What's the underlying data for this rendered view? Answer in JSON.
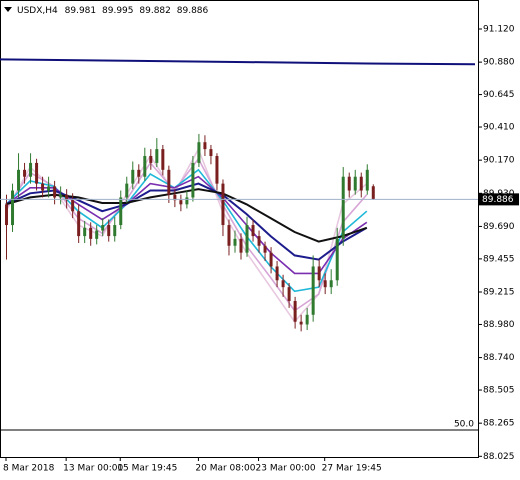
{
  "chart_data": {
    "type": "candlestick",
    "title": "USDX,H4",
    "bull_color": "#2f7a2f",
    "bear_color": "#7a1f1f",
    "open": [
      89.85,
      89.7,
      89.95,
      90.1,
      90.05,
      90.15,
      90.0,
      89.95,
      89.98,
      89.9,
      89.92,
      89.88,
      89.8,
      89.62,
      89.68,
      89.6,
      89.66,
      89.7,
      89.62,
      89.7,
      89.9,
      90.0,
      90.1,
      90.05,
      90.2,
      90.15,
      90.25,
      90.1,
      89.92,
      89.88,
      89.85,
      89.9,
      90.15,
      90.3,
      90.25,
      90.2,
      90.0,
      89.7,
      89.55,
      89.6,
      89.5,
      89.7,
      89.62,
      89.55,
      89.5,
      89.4,
      89.3,
      89.25,
      89.15,
      89.0,
      88.98,
      89.05,
      89.4,
      89.3,
      89.25,
      89.3,
      89.6,
      90.05,
      89.95,
      90.05,
      89.95,
      89.981
    ],
    "high": [
      89.92,
      90.0,
      90.22,
      90.15,
      90.22,
      90.18,
      90.05,
      90.05,
      90.02,
      89.98,
      89.96,
      89.93,
      89.85,
      89.73,
      89.72,
      89.7,
      89.75,
      89.74,
      89.76,
      89.95,
      90.05,
      90.16,
      90.14,
      90.26,
      90.25,
      90.33,
      90.28,
      90.13,
      89.96,
      89.92,
      89.95,
      90.2,
      90.36,
      90.35,
      90.28,
      90.22,
      90.03,
      89.74,
      89.66,
      89.64,
      89.76,
      89.74,
      89.66,
      89.58,
      89.54,
      89.44,
      89.34,
      89.28,
      89.18,
      89.05,
      89.1,
      89.48,
      89.45,
      89.35,
      89.38,
      89.68,
      90.12,
      90.08,
      90.1,
      90.08,
      90.14,
      89.995
    ],
    "low": [
      89.45,
      89.65,
      89.9,
      90.0,
      90.0,
      89.95,
      89.9,
      89.9,
      89.85,
      89.85,
      89.82,
      89.75,
      89.57,
      89.57,
      89.55,
      89.56,
      89.62,
      89.58,
      89.58,
      89.67,
      89.86,
      89.96,
      90.0,
      90.02,
      90.1,
      90.12,
      90.06,
      89.86,
      89.83,
      89.8,
      89.82,
      89.87,
      90.12,
      90.2,
      90.14,
      89.95,
      89.62,
      89.48,
      89.5,
      89.45,
      89.47,
      89.58,
      89.5,
      89.44,
      89.35,
      89.25,
      89.18,
      89.1,
      88.95,
      88.93,
      88.94,
      89.0,
      89.25,
      89.2,
      89.2,
      89.26,
      89.55,
      89.9,
      89.92,
      89.9,
      89.92,
      89.882
    ],
    "close": [
      89.7,
      89.95,
      90.1,
      90.05,
      90.15,
      90.0,
      89.95,
      89.98,
      89.9,
      89.92,
      89.88,
      89.8,
      89.62,
      89.68,
      89.6,
      89.66,
      89.7,
      89.62,
      89.7,
      89.9,
      90.0,
      90.1,
      90.05,
      90.2,
      90.15,
      90.25,
      90.1,
      89.92,
      89.88,
      89.85,
      89.9,
      90.15,
      90.3,
      90.25,
      90.2,
      90.0,
      89.7,
      89.55,
      89.6,
      89.5,
      89.7,
      89.62,
      89.55,
      89.5,
      89.4,
      89.3,
      89.25,
      89.15,
      89.0,
      88.98,
      89.05,
      89.4,
      89.3,
      89.25,
      89.3,
      89.6,
      90.05,
      89.95,
      90.05,
      89.95,
      90.1,
      89.886
    ],
    "moving_averages": [
      {
        "color": "#e8c8e0",
        "x": [
          0,
          4,
          8,
          12,
          16,
          20,
          24,
          28,
          32,
          36,
          40,
          44,
          48,
          52,
          56,
          60
        ],
        "values": [
          89.8,
          90.12,
          89.96,
          89.7,
          89.62,
          89.92,
          90.2,
          89.93,
          90.25,
          89.8,
          89.5,
          89.25,
          89.0,
          89.2,
          89.85,
          90.0
        ]
      },
      {
        "color": "#d7a6d7",
        "x": [
          0,
          4,
          8,
          12,
          16,
          20,
          24,
          28,
          32,
          36,
          40,
          44,
          48,
          52,
          56,
          60
        ],
        "values": [
          89.82,
          90.08,
          89.98,
          89.75,
          89.64,
          89.88,
          90.15,
          89.95,
          90.18,
          89.85,
          89.55,
          89.32,
          89.08,
          89.2,
          89.72,
          89.92
        ]
      },
      {
        "color": "#1fb8d8",
        "x": [
          0,
          4,
          8,
          12,
          16,
          20,
          24,
          28,
          32,
          36,
          40,
          44,
          48,
          52,
          56,
          60
        ],
        "values": [
          89.85,
          90.02,
          89.98,
          89.8,
          89.68,
          89.85,
          90.07,
          89.97,
          90.1,
          89.88,
          89.62,
          89.4,
          89.22,
          89.25,
          89.65,
          89.8
        ]
      },
      {
        "color": "#7a2fb0",
        "x": [
          0,
          4,
          8,
          12,
          16,
          20,
          24,
          28,
          32,
          36,
          40,
          44,
          48,
          52,
          56,
          60
        ],
        "values": [
          89.85,
          89.97,
          89.97,
          89.85,
          89.74,
          89.85,
          90.0,
          89.97,
          90.05,
          89.9,
          89.7,
          89.5,
          89.35,
          89.35,
          89.6,
          89.72
        ]
      },
      {
        "color": "#1c1c8c",
        "x": [
          0,
          4,
          8,
          12,
          16,
          20,
          24,
          28,
          32,
          36,
          40,
          44,
          48,
          52,
          56,
          60
        ],
        "values": [
          89.85,
          89.93,
          89.95,
          89.88,
          89.8,
          89.85,
          89.95,
          89.95,
          90.0,
          89.92,
          89.78,
          89.62,
          89.48,
          89.45,
          89.58,
          89.68
        ]
      },
      {
        "color": "#111111",
        "x": [
          0,
          4,
          8,
          12,
          16,
          20,
          24,
          28,
          32,
          36,
          40,
          44,
          48,
          52,
          56,
          60
        ],
        "values": [
          89.85,
          89.9,
          89.92,
          89.9,
          89.86,
          89.86,
          89.9,
          89.93,
          89.96,
          89.93,
          89.85,
          89.75,
          89.65,
          89.58,
          89.62,
          89.68
        ]
      },
      {
        "color": "#10107a",
        "x": [
          -1,
          20,
          40,
          60,
          78
        ],
        "values": [
          90.9,
          90.89,
          90.88,
          90.87,
          90.865
        ]
      }
    ],
    "last_price_color": "#9fb0c8",
    "level_label": "50.0",
    "xlim": [
      -1,
      78.5
    ],
    "ylim": [
      88.02,
      91.33
    ],
    "xticks": [
      {
        "value": 0,
        "label": "8 Mar 2018"
      },
      {
        "value": 10,
        "label": "13 Mar 00:00"
      },
      {
        "value": 19,
        "label": "15 Mar 19:45"
      },
      {
        "value": 32,
        "label": "20 Mar 08:00"
      },
      {
        "value": 42,
        "label": "23 Mar 00:00"
      },
      {
        "value": 53,
        "label": "27 Mar 19:45"
      }
    ],
    "yticks": [
      {
        "value": 91.12,
        "label": "91.120"
      },
      {
        "value": 90.88,
        "label": "90.880"
      },
      {
        "value": 90.645,
        "label": "90.645"
      },
      {
        "value": 90.41,
        "label": "90.410"
      },
      {
        "value": 90.17,
        "label": "90.170"
      },
      {
        "value": 89.93,
        "label": "89.930"
      },
      {
        "value": 89.69,
        "label": "89.690"
      },
      {
        "value": 89.455,
        "label": "89.455"
      },
      {
        "value": 89.215,
        "label": "89.215"
      },
      {
        "value": 88.98,
        "label": "88.980"
      },
      {
        "value": 88.74,
        "label": "88.740"
      },
      {
        "value": 88.505,
        "label": "88.505"
      },
      {
        "value": 88.265,
        "label": "88.265"
      },
      {
        "value": 88.025,
        "label": "88.025"
      }
    ]
  }
}
